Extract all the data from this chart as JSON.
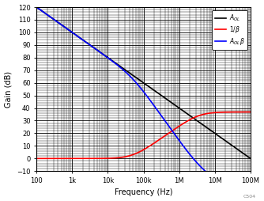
{
  "title": "",
  "xlabel": "Frequency (Hz)",
  "ylabel": "Gain (dB)",
  "xlim_log": [
    100,
    100000000
  ],
  "ylim": [
    -10,
    120
  ],
  "yticks": [
    -10,
    0,
    10,
    20,
    30,
    40,
    50,
    60,
    70,
    80,
    90,
    100,
    110,
    120
  ],
  "xtick_labels": [
    "100",
    "1k",
    "10k",
    "100k",
    "1M",
    "10M",
    "100M"
  ],
  "xtick_vals": [
    100,
    1000,
    10000,
    100000,
    1000000,
    10000000,
    100000000
  ],
  "legend_labels": [
    "$A_{OL}$",
    "$1/\\beta$",
    "$A_{OL}\\beta$"
  ],
  "legend_colors": [
    "black",
    "red",
    "blue"
  ],
  "watermark": "C504",
  "background_color": "#ffffff",
  "grid_color": "#000000",
  "line_width": 1.2,
  "aol_dc": 120,
  "aol_slope_per_decade": -20,
  "inv_beta_flat": 0,
  "inv_beta_fz": 50000,
  "inv_beta_fp": 3500000,
  "inv_beta_max": 27
}
